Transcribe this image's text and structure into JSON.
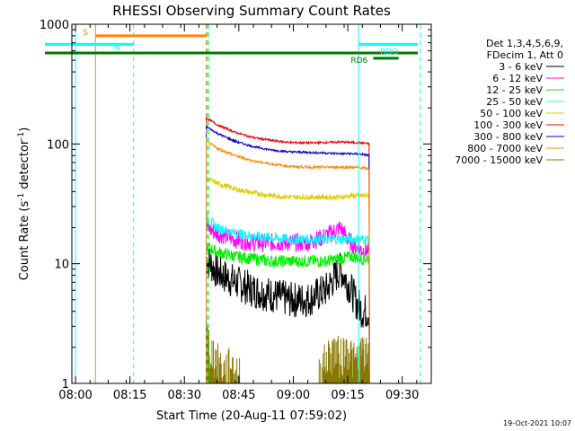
{
  "chart_data": {
    "type": "line",
    "title": "RHESSI Observing Summary Count Rates",
    "xlabel": "Start Time (20-Aug-11 07:59:02)",
    "ylabel_main": "Count Rate (s",
    "ylabel_sup1": "-1",
    "ylabel_mid": " detector",
    "ylabel_sup2": "-1",
    "ylabel_end": ")",
    "xlim_min": [
      0,
      99
    ],
    "ylim": [
      1,
      1000
    ],
    "y_scale": "log",
    "x_ticks": [
      {
        "min": 1,
        "label": "08:00"
      },
      {
        "min": 16,
        "label": "08:15"
      },
      {
        "min": 31,
        "label": "08:30"
      },
      {
        "min": 46,
        "label": "08:45"
      },
      {
        "min": 61,
        "label": "09:00"
      },
      {
        "min": 76,
        "label": "09:15"
      },
      {
        "min": 91,
        "label": "09:30"
      }
    ],
    "y_ticks": [
      {
        "value": 1,
        "label": "1"
      },
      {
        "value": 10,
        "label": "10"
      },
      {
        "value": 100,
        "label": "100"
      },
      {
        "value": 1000,
        "label": "1000"
      }
    ],
    "legend_header": [
      "Det 1,3,4,5,6,9,",
      "FDecim 1, Att 0"
    ],
    "legend_position": "right",
    "series": [
      {
        "name": "3 - 6 keV",
        "color": "#000000",
        "x": [
          37,
          40,
          45,
          50,
          55,
          60,
          65,
          70,
          74,
          77,
          78,
          80,
          82
        ],
        "y": [
          11,
          8.5,
          7,
          6,
          5.5,
          5,
          5,
          6,
          9,
          6,
          5,
          4,
          4
        ]
      },
      {
        "name": "6 - 12 keV",
        "color": "#ff00ff",
        "x": [
          37,
          40,
          45,
          50,
          55,
          60,
          65,
          70,
          74,
          76,
          78,
          80,
          82
        ],
        "y": [
          20,
          18,
          16,
          15,
          15,
          15,
          15,
          17,
          20,
          16,
          14,
          13,
          13
        ]
      },
      {
        "name": "12 - 25 keV",
        "color": "#00ee00",
        "x": [
          37,
          40,
          45,
          50,
          55,
          60,
          65,
          70,
          74,
          77,
          80,
          82
        ],
        "y": [
          14,
          12.5,
          11.5,
          11,
          10.5,
          10.5,
          10.5,
          10.5,
          11,
          11.5,
          11,
          11
        ]
      },
      {
        "name": "25 - 50 keV",
        "color": "#00ffff",
        "x": [
          37,
          40,
          45,
          50,
          55,
          60,
          65,
          70,
          74,
          77,
          80,
          82
        ],
        "y": [
          24,
          20,
          18,
          17,
          16.5,
          16,
          16,
          16,
          16,
          16,
          16,
          16
        ]
      },
      {
        "name": "50 - 100 keV",
        "color": "#ddcc00",
        "x": [
          37,
          40,
          45,
          50,
          55,
          60,
          65,
          70,
          74,
          77,
          80,
          82
        ],
        "y": [
          52,
          47,
          42,
          39,
          37,
          36,
          36,
          36,
          36,
          37,
          37,
          37
        ]
      },
      {
        "name": "100 - 300 keV",
        "color": "#ee0000",
        "x": [
          37,
          40,
          45,
          50,
          55,
          60,
          65,
          70,
          74,
          77,
          80,
          82
        ],
        "y": [
          165,
          145,
          125,
          113,
          107,
          103,
          102,
          103,
          104,
          103,
          102,
          100
        ]
      },
      {
        "name": "300 - 800 keV",
        "color": "#0000cc",
        "x": [
          37,
          40,
          45,
          50,
          55,
          60,
          65,
          70,
          74,
          77,
          80,
          82
        ],
        "y": [
          140,
          123,
          105,
          95,
          89,
          86,
          85,
          84,
          83,
          83,
          82,
          80
        ]
      },
      {
        "name": "800 - 7000 keV",
        "color": "#ff8800",
        "x": [
          37,
          40,
          45,
          50,
          55,
          60,
          65,
          70,
          74,
          77,
          80,
          82
        ],
        "y": [
          105,
          92,
          80,
          72,
          68,
          65,
          64,
          64,
          64,
          64,
          63,
          62
        ]
      },
      {
        "name": "7000 - 15000 keV",
        "color": "#887700",
        "x": [
          37,
          38,
          40,
          42,
          44,
          46,
          68,
          70,
          72,
          74,
          76,
          78,
          80,
          82
        ],
        "y": [
          2.8,
          2,
          1.6,
          1.3,
          1.5,
          1.2,
          1.3,
          1.6,
          2,
          1.7,
          2.1,
          1.5,
          1.9,
          1.6
        ]
      }
    ],
    "vertical_lines": [
      {
        "min": 1,
        "color": "#00ffff",
        "style": "solid"
      },
      {
        "min": 6.5,
        "color": "#ff8800",
        "style": "solid"
      },
      {
        "min": 17,
        "color": "#00ffff",
        "style": "dashed"
      },
      {
        "min": 37,
        "color": "#ff8800",
        "style": "dashed"
      },
      {
        "min": 37.3,
        "color": "#00ffff",
        "style": "dashed"
      },
      {
        "min": 37.6,
        "color": "#00ee00",
        "style": "dashed"
      },
      {
        "min": 79,
        "color": "#00ffff",
        "style": "solid"
      },
      {
        "min": 96,
        "color": "#00ffff",
        "style": "dashed"
      }
    ],
    "flag_bars": [
      {
        "label": "S",
        "color": "#ff8800",
        "x_start": 6.5,
        "x_end": 37,
        "y": 800
      },
      {
        "label": "N",
        "color": "#00ffff",
        "x_start": 0,
        "x_end": 17,
        "y": 680
      },
      {
        "label": "",
        "color": "#007700",
        "x_start": 0,
        "x_end": 99,
        "y": 575
      },
      {
        "label": "RDO",
        "color": "#00ffff",
        "x_start": 79,
        "x_end": 99,
        "y": 680
      },
      {
        "label": "RD6",
        "color": "#007700",
        "x_start": 83,
        "x_end": 90,
        "y": 520
      }
    ],
    "grid": false,
    "timestamp": "19-Oct-2021 10:07"
  }
}
